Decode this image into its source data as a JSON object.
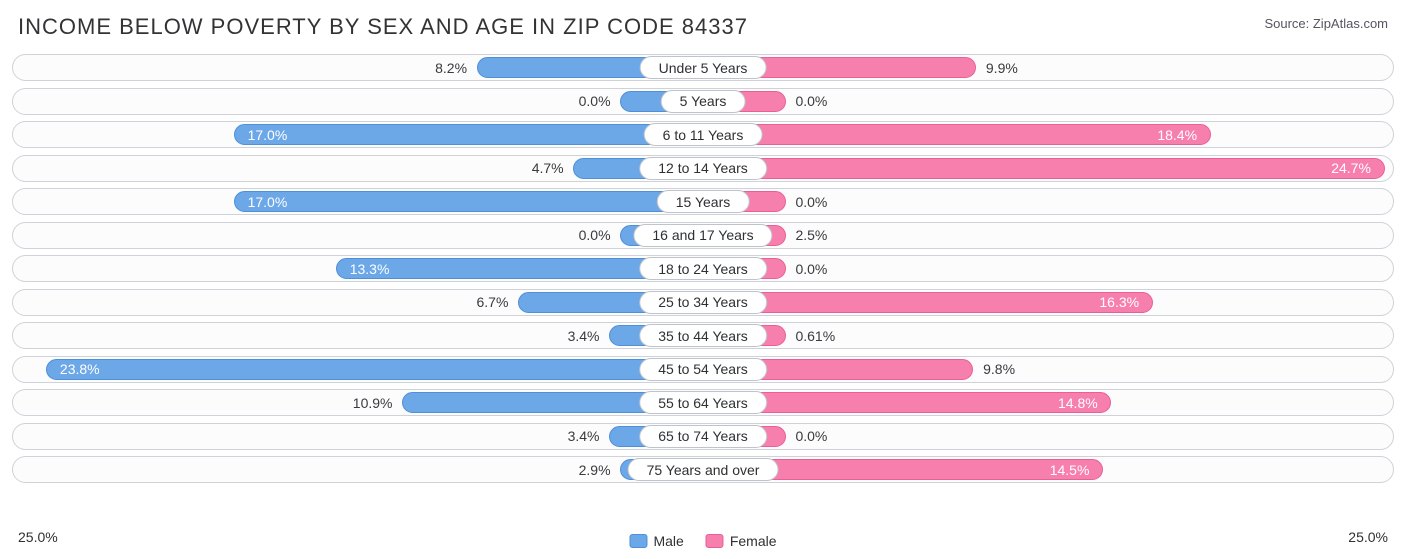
{
  "title": "INCOME BELOW POVERTY BY SEX AND AGE IN ZIP CODE 84337",
  "source": "Source: ZipAtlas.com",
  "axis_max": 25.0,
  "axis_label": "25.0%",
  "colors": {
    "male_fill": "#6ca7e8",
    "male_border": "#4f8fd6",
    "female_fill": "#f77fae",
    "female_border": "#e95f96",
    "track_border": "#cfd2d8",
    "track_bg": "#fcfcfd",
    "text": "#2f3033",
    "title_text": "#333336",
    "label_inside": "#ffffff"
  },
  "legend": {
    "male": "Male",
    "female": "Female"
  },
  "min_bar_pct": 3.0,
  "rows": [
    {
      "category": "Under 5 Years",
      "male": 8.2,
      "female": 9.9
    },
    {
      "category": "5 Years",
      "male": 0.0,
      "female": 0.0
    },
    {
      "category": "6 to 11 Years",
      "male": 17.0,
      "female": 18.4
    },
    {
      "category": "12 to 14 Years",
      "male": 4.7,
      "female": 24.7
    },
    {
      "category": "15 Years",
      "male": 17.0,
      "female": 0.0
    },
    {
      "category": "16 and 17 Years",
      "male": 0.0,
      "female": 2.5
    },
    {
      "category": "18 to 24 Years",
      "male": 13.3,
      "female": 0.0
    },
    {
      "category": "25 to 34 Years",
      "male": 6.7,
      "female": 16.3
    },
    {
      "category": "35 to 44 Years",
      "male": 3.4,
      "female": 0.61
    },
    {
      "category": "45 to 54 Years",
      "male": 23.8,
      "female": 9.8
    },
    {
      "category": "55 to 64 Years",
      "male": 10.9,
      "female": 14.8
    },
    {
      "category": "65 to 74 Years",
      "male": 3.4,
      "female": 0.0
    },
    {
      "category": "75 Years and over",
      "male": 2.9,
      "female": 14.5
    }
  ]
}
